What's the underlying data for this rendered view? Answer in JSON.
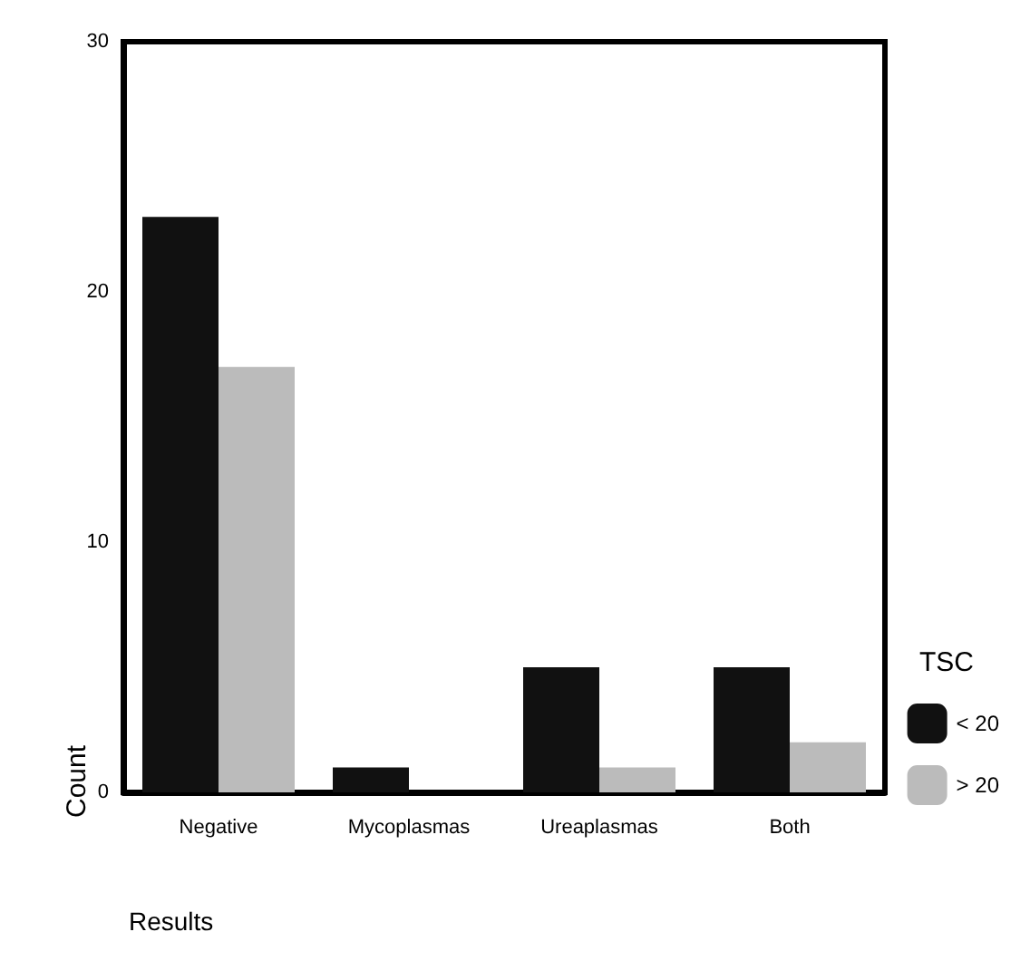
{
  "chart_data": {
    "type": "bar",
    "xlabel": "Results",
    "ylabel": "Count",
    "legend_title": "TSC",
    "categories": [
      "Negative",
      "Mycoplasmas",
      "Ureaplasmas",
      "Both"
    ],
    "series": [
      {
        "name": "< 20",
        "color": "#111111",
        "values": [
          23,
          1,
          5,
          5
        ]
      },
      {
        "name": "> 20",
        "color": "#bbbbbb",
        "values": [
          17,
          0,
          1,
          2
        ]
      }
    ],
    "ylim": [
      0,
      30
    ],
    "yticks": [
      0,
      10,
      20,
      30
    ],
    "grid": false,
    "legend": "right"
  }
}
